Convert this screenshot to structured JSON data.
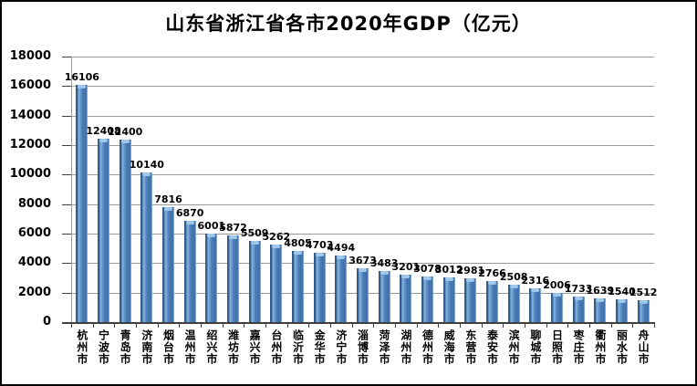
{
  "chart_data": {
    "type": "bar",
    "title": "山东省浙江省各市2020年GDP（亿元）",
    "xlabel": "",
    "ylabel": "",
    "categories": [
      "杭州市",
      "宁波市",
      "青岛市",
      "济南市",
      "烟台市",
      "温州市",
      "绍兴市",
      "潍坊市",
      "嘉兴市",
      "台州市",
      "临沂市",
      "金华市",
      "济宁市",
      "淄博市",
      "菏泽市",
      "湖州市",
      "德州市",
      "威海市",
      "东营市",
      "泰安市",
      "滨州市",
      "聊城市",
      "日照市",
      "枣庄市",
      "衢州市",
      "丽水市",
      "舟山市"
    ],
    "values": [
      16106,
      12408,
      12400,
      10140,
      7816,
      6870,
      6001,
      5872,
      5509,
      5262,
      4805,
      4703,
      4494,
      3673,
      3483,
      3201,
      3078,
      3012,
      2981,
      2766,
      2508,
      2316,
      2006,
      1733,
      1639,
      1540,
      1512
    ],
    "value_labels_shown": true,
    "ylim": [
      0,
      18000
    ],
    "ytick_step": 2000,
    "grid": true,
    "legend": "none",
    "colors": {
      "bar_main": "#4a7ebb",
      "bar_edge_dark": "#2e5984",
      "bar_highlight": "#86b3de",
      "bar_cap": "#9ec7ea",
      "gridline": "#999999",
      "axis": "#404040",
      "text": "#000000",
      "background": "#ffffff",
      "frame_border": "#000000"
    }
  }
}
